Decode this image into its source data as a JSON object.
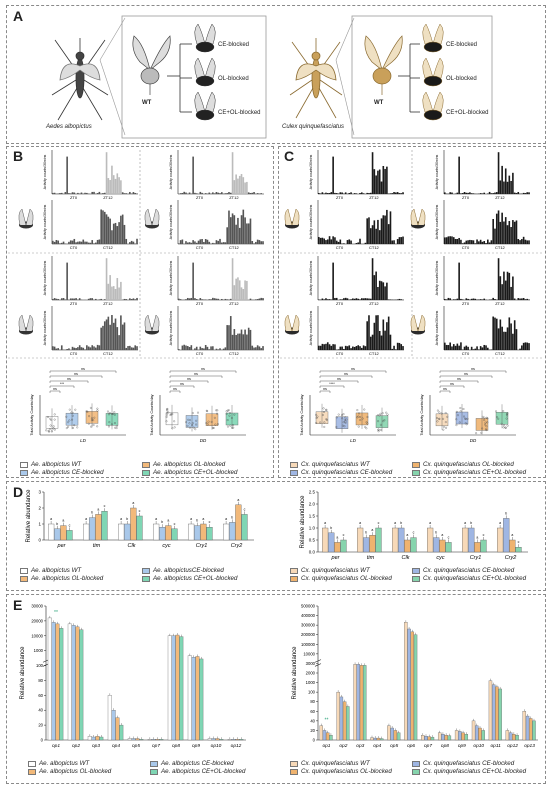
{
  "panel_labels": {
    "a": "A",
    "b": "B",
    "c": "C",
    "d": "D",
    "e": "E"
  },
  "panel_a": {
    "left_species": "Aedes albopictus",
    "right_species": "Culex quinquefasciatus",
    "wt": "WT",
    "groups": [
      "CE-blocked",
      "OL-blocked",
      "CE+OL-blocked"
    ]
  },
  "activity": {
    "y_label": "Activity counts/30mins",
    "lo_ticks": [
      "ZT0",
      "ZT12"
    ],
    "dd_ticks": [
      "CT0",
      "CT12"
    ]
  },
  "summary": {
    "y_label": "Total Activity Counts/day",
    "ld": "LD",
    "dd": "DD",
    "ns": "ns",
    "sig3": "***",
    "sig4": "****"
  },
  "colors": {
    "wt_alb": "#ffffff",
    "ce": "#a9c8ea",
    "ol": "#f2b97a",
    "ceol": "#7fd6b4",
    "wt_cx": "#f7d9b8",
    "ce_cx": "#9fb6e3",
    "ol_cx": "#efb36f",
    "ceol_cx": "#86d4ad"
  },
  "legend_alb": [
    "Ae. albopictus WT",
    "Ae. albopictus OL-blocked",
    "Ae. albopictus CE-blocked",
    "Ae. albopictus CE+OL-blocked"
  ],
  "legend_alb_d": [
    "Ae. albopictus WT",
    "Ae. albopictus OL-blocked",
    "Ae. albopictusCE-blocked",
    "Ae. albopictus CE+OL-blocked"
  ],
  "legend_cx": [
    "Cx. quinquefasciatus WT",
    "Cx. quinquefasciatus CE-blocked",
    "Cx. quinquefasciatus OL-blocked",
    "Cx. quinquefasciatus CE+OL-blocked"
  ],
  "panel_d": {
    "y_label": "Relative abundance",
    "genes": [
      "per",
      "tim",
      "Clk",
      "cyc",
      "Cry1",
      "Cry2"
    ],
    "alb_yticks": [
      "0",
      "1",
      "2",
      "3"
    ],
    "cx_yticks": [
      "0.0",
      "0.5",
      "1.0",
      "1.5",
      "2.0",
      "2.5"
    ]
  },
  "panel_e": {
    "y_label": "Relative abundance",
    "alb_genes": [
      "op1",
      "op2",
      "op3",
      "op4",
      "op5",
      "op7",
      "op8",
      "op9",
      "op10",
      "op12"
    ],
    "cx_genes": [
      "op1",
      "op2",
      "op3",
      "op4",
      "op5",
      "op6",
      "op7",
      "op8",
      "op9",
      "op10",
      "op11",
      "op12",
      "op13"
    ],
    "alb_yticks": [
      "0",
      "20",
      "40",
      "60",
      "80",
      "100",
      "1000",
      "10000",
      "20000",
      "30000"
    ],
    "cx_yticks": [
      "0",
      "20",
      "40",
      "60",
      "80",
      "100",
      "1000",
      "2000",
      "3000",
      "10000",
      "100000",
      "200000",
      "300000",
      "400000",
      "500000"
    ],
    "sig": "**"
  },
  "chart_data": [
    {
      "type": "bar",
      "title": "",
      "ylabel": "Relative abundance",
      "categories": [
        "per",
        "tim",
        "Clk",
        "cyc",
        "Cry1",
        "Cry2"
      ],
      "series": [
        {
          "name": "Ae. albopictus WT",
          "values": [
            1.0,
            1.0,
            1.0,
            1.0,
            1.0,
            1.0
          ]
        },
        {
          "name": "Ae. albopictusCE-blocked",
          "values": [
            0.7,
            1.4,
            1.0,
            0.8,
            0.9,
            1.1
          ]
        },
        {
          "name": "Ae. albopictus OL-blocked",
          "values": [
            0.9,
            1.6,
            2.0,
            0.9,
            1.0,
            2.2
          ]
        },
        {
          "name": "Ae. albopictus CE+OL-blocked",
          "values": [
            0.6,
            1.8,
            1.5,
            0.7,
            0.8,
            1.6
          ]
        }
      ],
      "ylim": [
        0,
        3
      ]
    },
    {
      "type": "bar",
      "title": "",
      "ylabel": "Relative abundance",
      "categories": [
        "per",
        "tim",
        "Clk",
        "cyc",
        "Cry1",
        "Cry2"
      ],
      "series": [
        {
          "name": "Cx. quinquefasciatus WT",
          "values": [
            1.0,
            1.0,
            1.0,
            1.0,
            1.0,
            1.0
          ]
        },
        {
          "name": "Cx. quinquefasciatus CE-blocked",
          "values": [
            0.8,
            0.6,
            1.0,
            0.6,
            1.0,
            1.4
          ]
        },
        {
          "name": "Cx. quinquefasciatus OL-blocked",
          "values": [
            0.4,
            0.7,
            0.5,
            0.5,
            0.4,
            0.5
          ]
        },
        {
          "name": "Cx. quinquefasciatus CE+OL-blocked",
          "values": [
            0.5,
            1.0,
            0.6,
            0.4,
            0.5,
            0.2
          ]
        }
      ],
      "ylim": [
        0,
        2.5
      ]
    },
    {
      "type": "bar",
      "title": "",
      "ylabel": "Relative abundance",
      "categories": [
        "op1",
        "op2",
        "op3",
        "op4",
        "op5",
        "op7",
        "op8",
        "op9",
        "op10",
        "op12"
      ],
      "series": [
        {
          "name": "Ae. albopictus WT",
          "values": [
            22000,
            18000,
            5,
            60,
            2,
            1,
            10000,
            700,
            2,
            1
          ]
        },
        {
          "name": "Ae. albopictus CE-blocked",
          "values": [
            19000,
            17000,
            4,
            40,
            2,
            1,
            10000,
            600,
            2,
            1
          ]
        },
        {
          "name": "Ae. albopictus OL-blocked",
          "values": [
            18000,
            16000,
            5,
            30,
            2,
            1,
            10500,
            650,
            2,
            1
          ]
        },
        {
          "name": "Ae. albopictus CE+OL-blocked",
          "values": [
            15000,
            14000,
            4,
            20,
            1,
            1,
            9500,
            500,
            1,
            1
          ]
        }
      ]
    },
    {
      "type": "bar",
      "title": "",
      "ylabel": "Relative abundance",
      "categories": [
        "op1",
        "op2",
        "op3",
        "op4",
        "op5",
        "op6",
        "op7",
        "op8",
        "op9",
        "op10",
        "op11",
        "op12",
        "op13"
      ],
      "series": [
        {
          "name": "Cx. quinquefasciatus WT",
          "values": [
            30,
            100,
            2900,
            5,
            30,
            330000,
            10,
            15,
            20,
            40,
            1200,
            20,
            60
          ]
        },
        {
          "name": "Cx. quinquefasciatus CE-blocked",
          "values": [
            20,
            90,
            2900,
            4,
            25,
            260000,
            8,
            12,
            18,
            30,
            800,
            15,
            50
          ]
        },
        {
          "name": "Cx. quinquefasciatus OL-blocked",
          "values": [
            15,
            80,
            2800,
            4,
            20,
            230000,
            7,
            10,
            15,
            25,
            600,
            12,
            45
          ]
        },
        {
          "name": "Cx. quinquefasciatus CE+OL-blocked",
          "values": [
            10,
            70,
            2800,
            3,
            15,
            200000,
            6,
            9,
            12,
            20,
            400,
            10,
            40
          ]
        }
      ]
    }
  ]
}
